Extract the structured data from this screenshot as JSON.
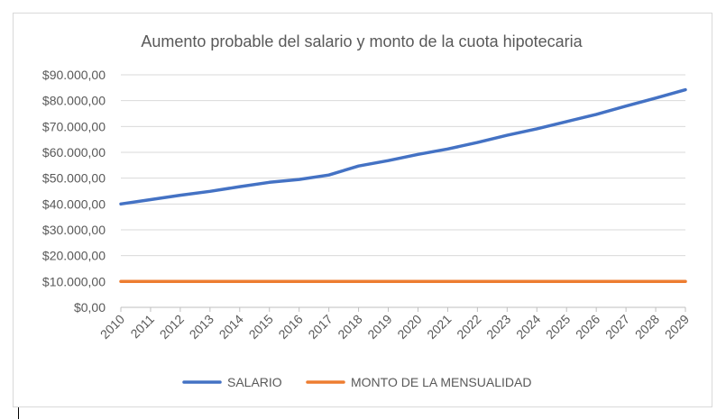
{
  "chart_data": {
    "type": "line",
    "title": "Aumento probable del salario y monto de la cuota hipotecaria",
    "xlabel": "",
    "ylabel": "",
    "x": [
      "2010",
      "2011",
      "2012",
      "2013",
      "2014",
      "2015",
      "2016",
      "2017",
      "2018",
      "2019",
      "2020",
      "2021",
      "2022",
      "2023",
      "2024",
      "2025",
      "2026",
      "2027",
      "2028",
      "2029"
    ],
    "ylim": [
      0,
      90000
    ],
    "yticks": [
      0,
      10000,
      20000,
      30000,
      40000,
      50000,
      60000,
      70000,
      80000,
      90000
    ],
    "ytick_labels": [
      "$0,00",
      "$10.000,00",
      "$20.000,00",
      "$30.000,00",
      "$40.000,00",
      "$50.000,00",
      "$60.000,00",
      "$70.000,00",
      "$80.000,00",
      "$90.000,00"
    ],
    "grid": true,
    "legend_position": "bottom",
    "series": [
      {
        "name": "SALARIO",
        "color": "#4472c4",
        "values": [
          40000,
          41700,
          43400,
          44900,
          46700,
          48400,
          49500,
          51200,
          54700,
          56800,
          59200,
          61300,
          63800,
          66600,
          69100,
          71900,
          74700,
          77900,
          81000,
          84200
        ]
      },
      {
        "name": "MONTO DE LA MENSUALIDAD",
        "color": "#ed7d31",
        "values": [
          10000,
          10000,
          10000,
          10000,
          10000,
          10000,
          10000,
          10000,
          10000,
          10000,
          10000,
          10000,
          10000,
          10000,
          10000,
          10000,
          10000,
          10000,
          10000,
          10000
        ]
      }
    ]
  }
}
